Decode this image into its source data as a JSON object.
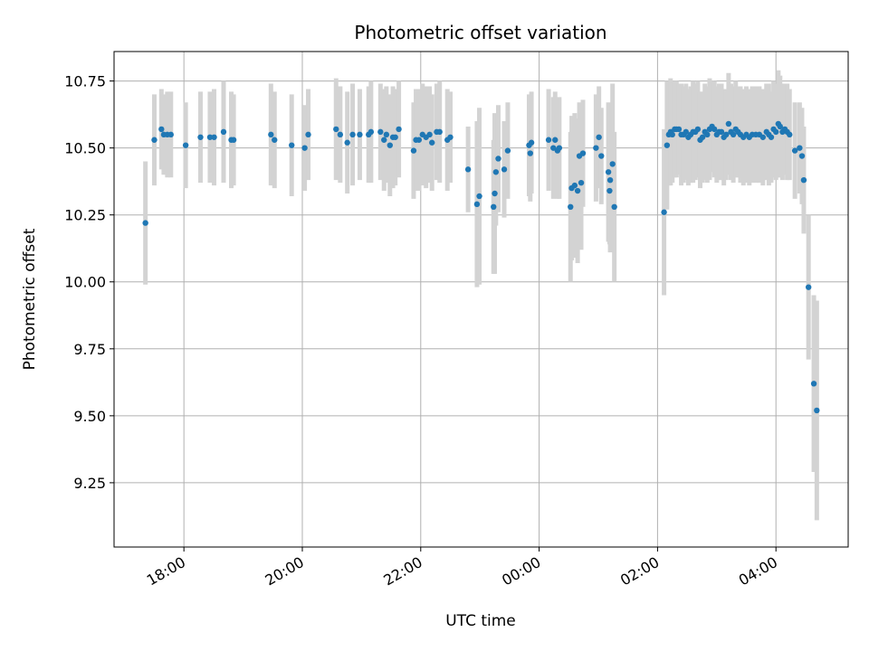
{
  "chart_data": {
    "type": "scatter",
    "title": "Photometric offset variation",
    "xlabel": "UTC time",
    "ylabel": "Photometric offset",
    "x_unit": "hours since 00:00 UTC (negative = previous evening)",
    "xlim": [
      -7.18,
      5.22
    ],
    "ylim": [
      9.01,
      10.86
    ],
    "grid": true,
    "legend": "none",
    "x_ticks": [
      {
        "value": -6,
        "label": "18:00"
      },
      {
        "value": -4,
        "label": "20:00"
      },
      {
        "value": -2,
        "label": "22:00"
      },
      {
        "value": 0,
        "label": "00:00"
      },
      {
        "value": 2,
        "label": "02:00"
      },
      {
        "value": 4,
        "label": "04:00"
      }
    ],
    "y_ticks": [
      {
        "value": 9.25,
        "label": "9.25"
      },
      {
        "value": 9.5,
        "label": "9.50"
      },
      {
        "value": 9.75,
        "label": "9.75"
      },
      {
        "value": 10.0,
        "label": "10.00"
      },
      {
        "value": 10.25,
        "label": "10.25"
      },
      {
        "value": 10.5,
        "label": "10.50"
      },
      {
        "value": 10.75,
        "label": "10.75"
      }
    ],
    "colors": {
      "points": "#1f77b4",
      "errorbars": "#d3d3d3",
      "grid": "#b0b0b0"
    },
    "series": [
      {
        "points": [
          [
            -6.65,
            10.22,
            0.23
          ],
          [
            -6.5,
            10.53,
            0.17
          ],
          [
            -6.38,
            10.57,
            0.15
          ],
          [
            -6.34,
            10.55,
            0.15
          ],
          [
            -6.28,
            10.55,
            0.16
          ],
          [
            -6.22,
            10.55,
            0.16
          ],
          [
            -5.97,
            10.51,
            0.16
          ],
          [
            -5.72,
            10.54,
            0.17
          ],
          [
            -5.56,
            10.54,
            0.17
          ],
          [
            -5.49,
            10.54,
            0.18
          ],
          [
            -5.33,
            10.56,
            0.19
          ],
          [
            -5.2,
            10.53,
            0.18
          ],
          [
            -5.16,
            10.53,
            0.17
          ],
          [
            -4.53,
            10.55,
            0.19
          ],
          [
            -4.47,
            10.53,
            0.18
          ],
          [
            -4.18,
            10.51,
            0.19
          ],
          [
            -3.96,
            10.5,
            0.16
          ],
          [
            -3.9,
            10.55,
            0.17
          ],
          [
            -3.43,
            10.57,
            0.19
          ],
          [
            -3.36,
            10.55,
            0.18
          ],
          [
            -3.24,
            10.52,
            0.19
          ],
          [
            -3.15,
            10.55,
            0.19
          ],
          [
            -3.03,
            10.55,
            0.17
          ],
          [
            -2.88,
            10.55,
            0.18
          ],
          [
            -2.84,
            10.56,
            0.19
          ],
          [
            -2.68,
            10.56,
            0.18
          ],
          [
            -2.62,
            10.53,
            0.19
          ],
          [
            -2.58,
            10.55,
            0.18
          ],
          [
            -2.52,
            10.51,
            0.19
          ],
          [
            -2.47,
            10.54,
            0.19
          ],
          [
            -2.43,
            10.54,
            0.18
          ],
          [
            -2.37,
            10.57,
            0.18
          ],
          [
            -2.12,
            10.49,
            0.18
          ],
          [
            -2.08,
            10.53,
            0.19
          ],
          [
            -2.03,
            10.53,
            0.19
          ],
          [
            -1.97,
            10.55,
            0.19
          ],
          [
            -1.91,
            10.54,
            0.19
          ],
          [
            -1.85,
            10.55,
            0.18
          ],
          [
            -1.81,
            10.52,
            0.18
          ],
          [
            -1.73,
            10.56,
            0.18
          ],
          [
            -1.68,
            10.56,
            0.19
          ],
          [
            -1.55,
            10.53,
            0.19
          ],
          [
            -1.5,
            10.54,
            0.17
          ],
          [
            -1.2,
            10.42,
            0.16
          ],
          [
            -1.05,
            10.29,
            0.31
          ],
          [
            -1.01,
            10.32,
            0.33
          ],
          [
            -0.77,
            10.28,
            0.25
          ],
          [
            -0.75,
            10.33,
            0.3
          ],
          [
            -0.73,
            10.41,
            0.2
          ],
          [
            -0.69,
            10.46,
            0.2
          ],
          [
            -0.59,
            10.42,
            0.18
          ],
          [
            -0.53,
            10.49,
            0.18
          ],
          [
            -0.17,
            10.51,
            0.19
          ],
          [
            -0.15,
            10.48,
            0.18
          ],
          [
            -0.13,
            10.52,
            0.19
          ],
          [
            0.16,
            10.53,
            0.19
          ],
          [
            0.24,
            10.5,
            0.19
          ],
          [
            0.27,
            10.53,
            0.18
          ],
          [
            0.31,
            10.49,
            0.18
          ],
          [
            0.34,
            10.5,
            0.19
          ],
          [
            0.53,
            10.28,
            0.28
          ],
          [
            0.55,
            10.35,
            0.27
          ],
          [
            0.6,
            10.36,
            0.27
          ],
          [
            0.65,
            10.34,
            0.27
          ],
          [
            0.68,
            10.47,
            0.2
          ],
          [
            0.71,
            10.37,
            0.25
          ],
          [
            0.74,
            10.48,
            0.2
          ],
          [
            0.96,
            10.5,
            0.2
          ],
          [
            1.01,
            10.54,
            0.19
          ],
          [
            1.05,
            10.47,
            0.18
          ],
          [
            1.17,
            10.41,
            0.26
          ],
          [
            1.19,
            10.34,
            0.2
          ],
          [
            1.2,
            10.38,
            0.27
          ],
          [
            1.24,
            10.44,
            0.3
          ],
          [
            1.27,
            10.28,
            0.28
          ],
          [
            2.11,
            10.26,
            0.31
          ],
          [
            2.16,
            10.51,
            0.24
          ],
          [
            2.19,
            10.55,
            0.19
          ],
          [
            2.22,
            10.56,
            0.2
          ],
          [
            2.25,
            10.55,
            0.18
          ],
          [
            2.29,
            10.57,
            0.18
          ],
          [
            2.32,
            10.57,
            0.18
          ],
          [
            2.36,
            10.57,
            0.17
          ],
          [
            2.4,
            10.55,
            0.19
          ],
          [
            2.44,
            10.55,
            0.18
          ],
          [
            2.48,
            10.56,
            0.18
          ],
          [
            2.52,
            10.54,
            0.18
          ],
          [
            2.56,
            10.55,
            0.18
          ],
          [
            2.6,
            10.56,
            0.19
          ],
          [
            2.64,
            10.56,
            0.18
          ],
          [
            2.68,
            10.57,
            0.18
          ],
          [
            2.72,
            10.53,
            0.18
          ],
          [
            2.76,
            10.54,
            0.17
          ],
          [
            2.8,
            10.56,
            0.18
          ],
          [
            2.84,
            10.55,
            0.18
          ],
          [
            2.88,
            10.57,
            0.19
          ],
          [
            2.92,
            10.58,
            0.17
          ],
          [
            2.96,
            10.57,
            0.18
          ],
          [
            3.0,
            10.55,
            0.18
          ],
          [
            3.04,
            10.56,
            0.18
          ],
          [
            3.08,
            10.56,
            0.18
          ],
          [
            3.12,
            10.54,
            0.18
          ],
          [
            3.16,
            10.55,
            0.17
          ],
          [
            3.2,
            10.59,
            0.19
          ],
          [
            3.24,
            10.56,
            0.18
          ],
          [
            3.28,
            10.55,
            0.18
          ],
          [
            3.32,
            10.57,
            0.18
          ],
          [
            3.36,
            10.56,
            0.17
          ],
          [
            3.4,
            10.55,
            0.18
          ],
          [
            3.45,
            10.54,
            0.18
          ],
          [
            3.5,
            10.55,
            0.18
          ],
          [
            3.55,
            10.54,
            0.18
          ],
          [
            3.6,
            10.55,
            0.18
          ],
          [
            3.66,
            10.55,
            0.18
          ],
          [
            3.72,
            10.55,
            0.18
          ],
          [
            3.78,
            10.54,
            0.18
          ],
          [
            3.84,
            10.56,
            0.18
          ],
          [
            3.88,
            10.55,
            0.19
          ],
          [
            3.92,
            10.54,
            0.17
          ],
          [
            3.96,
            10.57,
            0.18
          ],
          [
            4.0,
            10.56,
            0.18
          ],
          [
            4.04,
            10.59,
            0.2
          ],
          [
            4.07,
            10.58,
            0.19
          ],
          [
            4.11,
            10.56,
            0.18
          ],
          [
            4.15,
            10.57,
            0.17
          ],
          [
            4.19,
            10.56,
            0.18
          ],
          [
            4.23,
            10.55,
            0.17
          ],
          [
            4.32,
            10.49,
            0.18
          ],
          [
            4.4,
            10.5,
            0.17
          ],
          [
            4.44,
            10.47,
            0.18
          ],
          [
            4.47,
            10.38,
            0.2
          ],
          [
            4.55,
            9.98,
            0.27
          ],
          [
            4.64,
            9.62,
            0.33
          ],
          [
            4.69,
            9.52,
            0.41
          ]
        ]
      }
    ]
  }
}
